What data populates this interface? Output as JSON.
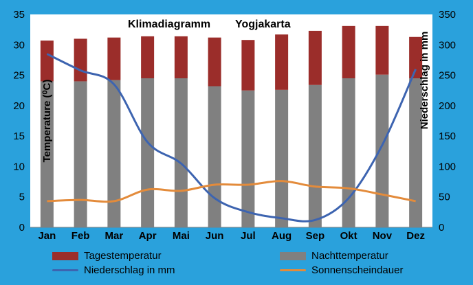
{
  "chart_data": {
    "type": "bar+line",
    "title_parts": [
      "Klimadiagramm",
      "Yogjakarta"
    ],
    "categories": [
      "Jan",
      "Feb",
      "Mar",
      "Apr",
      "Mai",
      "Jun",
      "Jul",
      "Aug",
      "Sep",
      "Okt",
      "Nov",
      "Dez"
    ],
    "y_left": {
      "label": "Temperature (⁰C)",
      "ylim": [
        0,
        35
      ],
      "ticks": [
        0,
        5,
        10,
        15,
        20,
        25,
        30,
        35
      ]
    },
    "y_right": {
      "label": "Niederschlag in mm",
      "ylim": [
        0,
        350
      ],
      "ticks": [
        0,
        50,
        100,
        150,
        200,
        250,
        300,
        350
      ]
    },
    "stacked_bars": [
      {
        "name": "Nachttemperatur",
        "color": "#808080",
        "axis": "left",
        "values": [
          24,
          24,
          24.2,
          24.5,
          24.5,
          23.2,
          22.5,
          22.6,
          23.4,
          24.5,
          25.1,
          24.5
        ]
      },
      {
        "name": "Tagestemperatur",
        "color": "#9b2d2a",
        "axis": "left",
        "tops": [
          30.7,
          31,
          31.2,
          31.4,
          31.4,
          31.2,
          30.8,
          31.7,
          32.3,
          33.1,
          33.1,
          31.3
        ]
      }
    ],
    "lines": [
      {
        "name": "Niederschlag in mm",
        "color": "#3d64b0",
        "axis": "right",
        "values": [
          285,
          258,
          235,
          140,
          105,
          48,
          25,
          15,
          12,
          48,
          135,
          260
        ]
      },
      {
        "name": "Sonnenscheindauer",
        "color": "#e38b3b",
        "axis": "right",
        "values": [
          43,
          45,
          43,
          62,
          60,
          70,
          70,
          76,
          67,
          64,
          54,
          43
        ]
      }
    ],
    "legend": [
      {
        "label": "Tagestemperatur",
        "kind": "box",
        "color": "#9b2d2a"
      },
      {
        "label": "Nachttemperatur",
        "kind": "box",
        "color": "#808080"
      },
      {
        "label": "Niederschlag in mm",
        "kind": "line",
        "color": "#3d64b0"
      },
      {
        "label": "Sonnenscheindauer",
        "kind": "line",
        "color": "#e38b3b"
      }
    ],
    "grid": false,
    "legend_position": "bottom"
  }
}
